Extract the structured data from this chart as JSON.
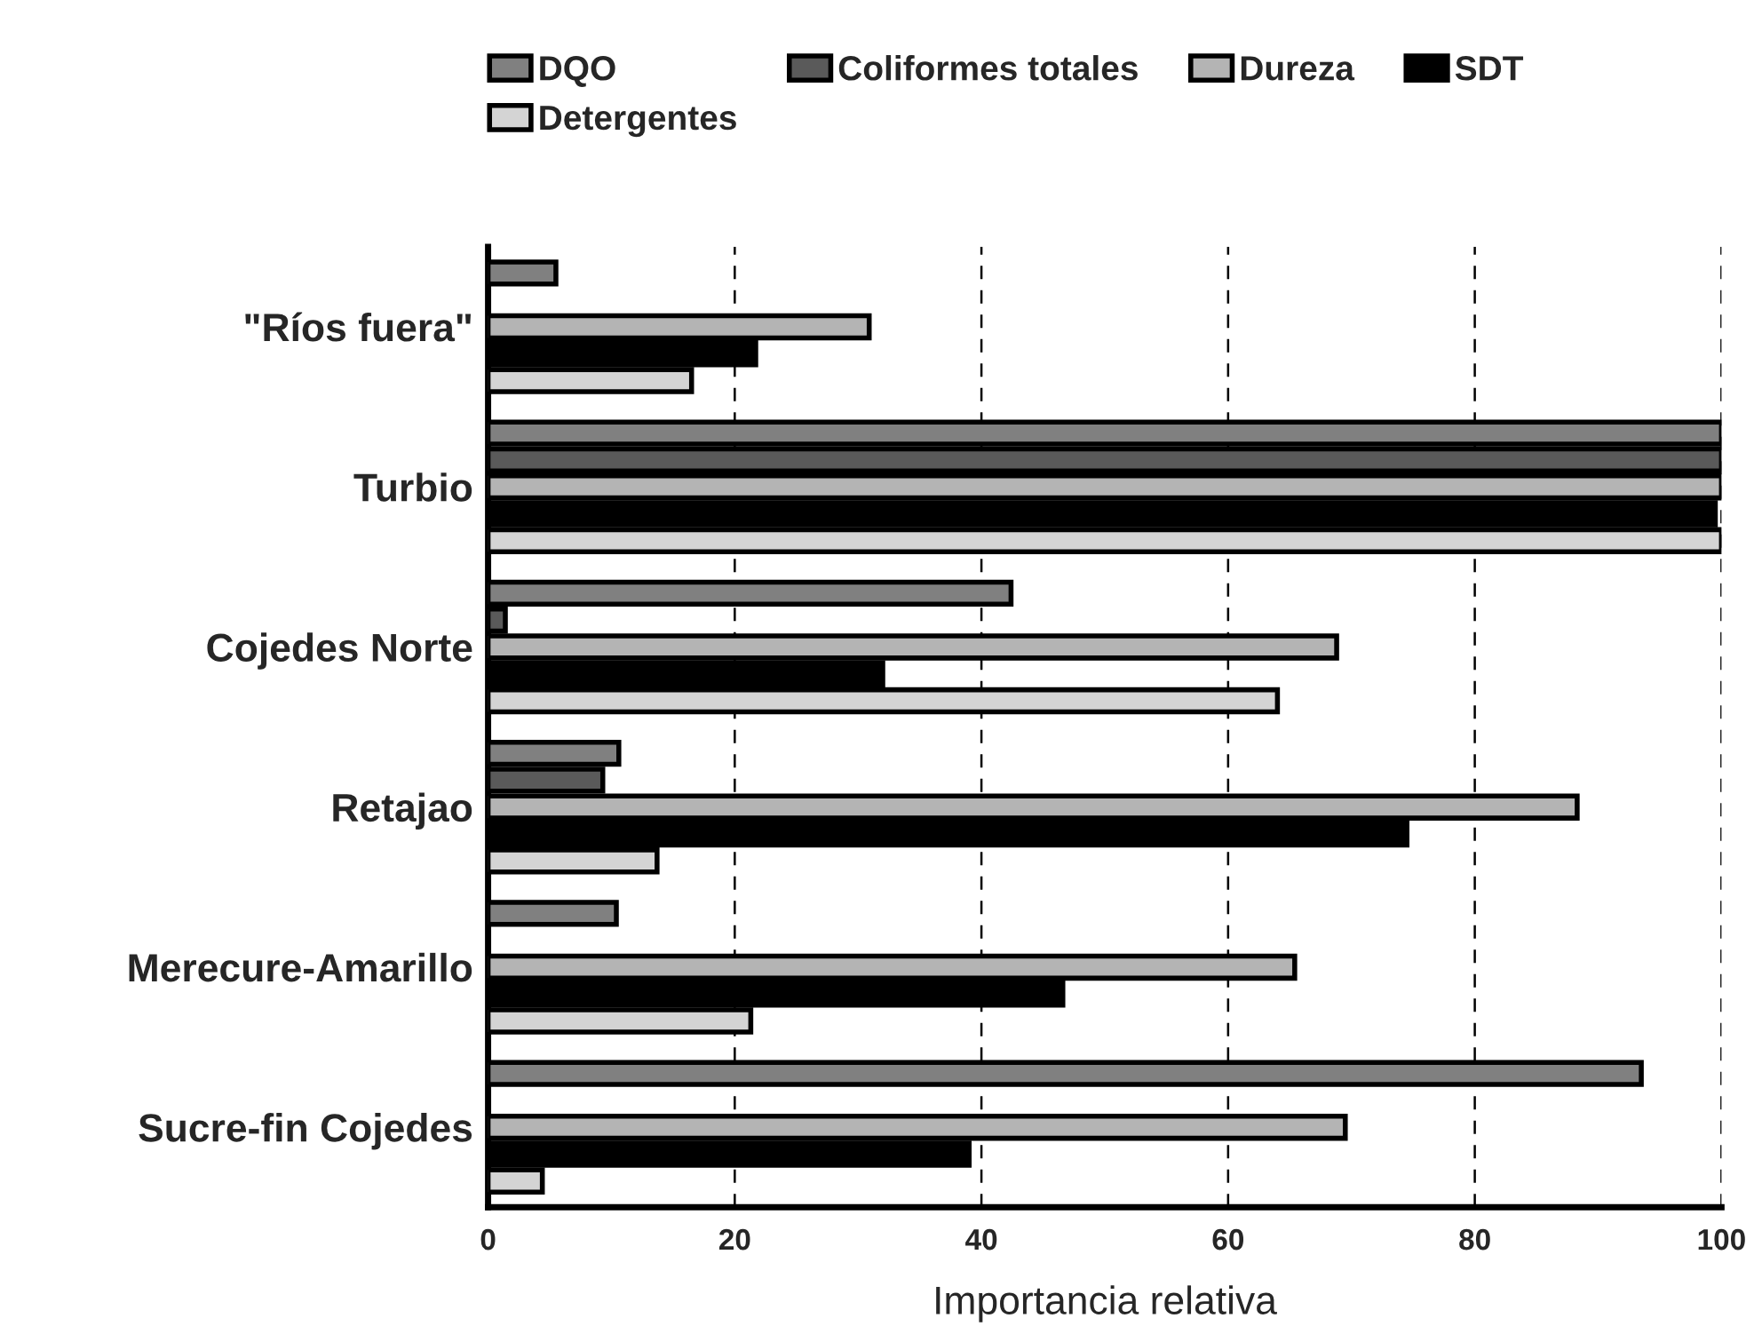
{
  "chart_data": {
    "type": "bar",
    "orientation": "horizontal",
    "xlabel": "Importancia relativa",
    "categories": [
      "\"Ríos fuera\"",
      "Turbio",
      "Cojedes Norte",
      "Retajao",
      "Merecure-Amarillo",
      "Sucre-fin Cojedes"
    ],
    "series": [
      {
        "name": "DQO",
        "color": "#808080",
        "values": [
          5.5,
          100,
          42.4,
          10.6,
          10.4,
          93.5
        ]
      },
      {
        "name": "Coliformes totales",
        "color": "#5a5a5a",
        "values": [
          null,
          100,
          1.4,
          9.3,
          null,
          null
        ]
      },
      {
        "name": "Dureza",
        "color": "#b4b4b4",
        "values": [
          30.9,
          100,
          68.8,
          88.3,
          65.4,
          69.5
        ]
      },
      {
        "name": "SDT",
        "color": "#000000",
        "values": [
          21.7,
          99.5,
          32,
          74.5,
          46.6,
          39
        ]
      },
      {
        "name": "Detergentes",
        "color": "#d4d4d4",
        "values": [
          16.5,
          100,
          64,
          13.7,
          21.3,
          4.4
        ]
      }
    ],
    "xlim": [
      0,
      100
    ],
    "xticks": [
      0,
      20,
      40,
      60,
      80,
      100
    ],
    "grid": "x",
    "legend": "top"
  }
}
